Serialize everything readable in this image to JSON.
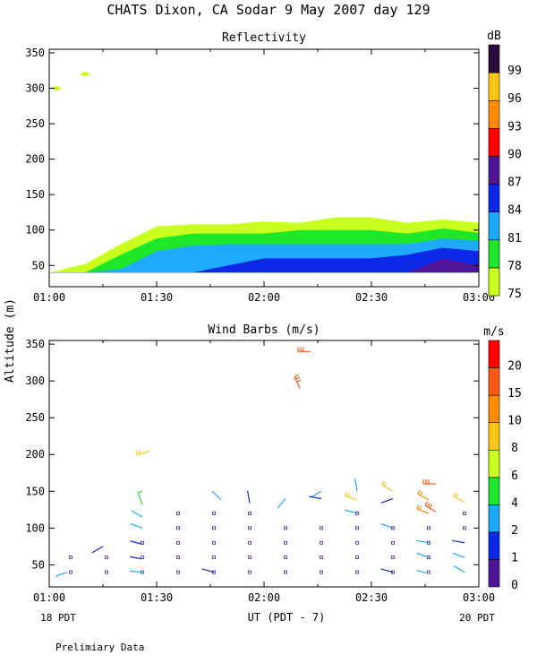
{
  "title": "CHATS Dixon, CA  Sodar   9 May 2007  day 129",
  "y_axis_label": "Altitude (m)",
  "x_axis_label": "UT  (PDT - 7)",
  "start_label": "18 PDT",
  "end_label": "20 PDT",
  "footer": "Prelimiary Data",
  "chart_data": [
    {
      "type": "area",
      "title": "Reflectivity",
      "xlabel": "UT  (PDT - 7)",
      "ylabel": "Altitude (m)",
      "x_ticks": [
        "01:00",
        "01:30",
        "02:00",
        "02:30",
        "03:00"
      ],
      "xlim_minutes_ut": [
        60,
        180
      ],
      "ylim": [
        20,
        355
      ],
      "y_ticks": [
        50,
        100,
        150,
        200,
        250,
        300,
        350
      ],
      "colorbar": {
        "unit": "dB",
        "levels": [
          75,
          78,
          81,
          84,
          87,
          90,
          93,
          96,
          99
        ],
        "colors": [
          "#c8ff1e",
          "#1ee628",
          "#1eaaff",
          "#0a28e6",
          "#50149a",
          "#ff0000",
          "#ff8c00",
          "#ffc814",
          "#2a0a3c"
        ]
      },
      "contour_x_minutes": [
        60,
        70,
        80,
        90,
        100,
        110,
        120,
        130,
        140,
        150,
        160,
        170,
        180
      ],
      "contours": [
        {
          "level": 75,
          "top_altitude_m": [
            40,
            52,
            80,
            105,
            108,
            108,
            112,
            110,
            118,
            118,
            110,
            115,
            110
          ]
        },
        {
          "level": 78,
          "top_altitude_m": [
            40,
            40,
            65,
            88,
            95,
            95,
            95,
            100,
            100,
            100,
            95,
            102,
            96
          ]
        },
        {
          "level": 81,
          "top_altitude_m": [
            40,
            40,
            45,
            70,
            78,
            80,
            80,
            80,
            80,
            80,
            80,
            88,
            85
          ]
        },
        {
          "level": 84,
          "top_altitude_m": [
            40,
            40,
            40,
            40,
            40,
            50,
            60,
            60,
            60,
            60,
            65,
            75,
            70
          ]
        },
        {
          "level": 87,
          "top_altitude_m": [
            40,
            40,
            40,
            40,
            40,
            40,
            40,
            40,
            40,
            40,
            40,
            60,
            50
          ]
        }
      ],
      "isolated_echoes": [
        {
          "x_minutes": 62,
          "y": 300,
          "level": 75
        },
        {
          "x_minutes": 70,
          "y": 320,
          "level": 75
        }
      ]
    },
    {
      "type": "scatter",
      "title": "Wind Barbs (m/s)",
      "xlabel": "UT  (PDT - 7)",
      "ylabel": "Altitude (m)",
      "x_ticks": [
        "01:00",
        "01:30",
        "02:00",
        "02:30",
        "03:00"
      ],
      "xlim_minutes_ut": [
        60,
        180
      ],
      "ylim": [
        20,
        355
      ],
      "y_ticks": [
        50,
        100,
        150,
        200,
        250,
        300,
        350
      ],
      "colorbar": {
        "unit": "m/s",
        "levels": [
          0,
          1,
          2,
          4,
          6,
          8,
          10,
          15,
          20
        ],
        "colors": [
          "#50149a",
          "#0a28e6",
          "#1eaaff",
          "#1ee628",
          "#c8ff1e",
          "#ffc814",
          "#ff8c00",
          "#ff5a14",
          "#ff0000"
        ]
      },
      "calm_points": [
        [
          66,
          40
        ],
        [
          66,
          60
        ],
        [
          76,
          40
        ],
        [
          76,
          60
        ],
        [
          86,
          40
        ],
        [
          86,
          60
        ],
        [
          86,
          80
        ],
        [
          96,
          40
        ],
        [
          96,
          60
        ],
        [
          96,
          80
        ],
        [
          96,
          100
        ],
        [
          96,
          120
        ],
        [
          106,
          40
        ],
        [
          106,
          60
        ],
        [
          106,
          80
        ],
        [
          106,
          100
        ],
        [
          106,
          120
        ],
        [
          116,
          40
        ],
        [
          116,
          60
        ],
        [
          116,
          80
        ],
        [
          116,
          100
        ],
        [
          116,
          120
        ],
        [
          126,
          40
        ],
        [
          126,
          60
        ],
        [
          126,
          80
        ],
        [
          126,
          100
        ],
        [
          136,
          40
        ],
        [
          136,
          60
        ],
        [
          136,
          80
        ],
        [
          136,
          100
        ],
        [
          146,
          40
        ],
        [
          146,
          60
        ],
        [
          146,
          80
        ],
        [
          146,
          100
        ],
        [
          146,
          120
        ],
        [
          156,
          40
        ],
        [
          156,
          60
        ],
        [
          156,
          80
        ],
        [
          156,
          100
        ],
        [
          166,
          40
        ],
        [
          166,
          60
        ],
        [
          166,
          80
        ],
        [
          166,
          100
        ],
        [
          176,
          100
        ],
        [
          176,
          120
        ]
      ],
      "wind_barbs": [
        {
          "x": 65,
          "y": 40,
          "dir": 250,
          "speed": 2
        },
        {
          "x": 75,
          "y": 75,
          "dir": 240,
          "speed": 1
        },
        {
          "x": 86,
          "y": 40,
          "dir": 275,
          "speed": 2
        },
        {
          "x": 86,
          "y": 58,
          "dir": 280,
          "speed": 1
        },
        {
          "x": 86,
          "y": 78,
          "dir": 285,
          "speed": 1
        },
        {
          "x": 86,
          "y": 100,
          "dir": 290,
          "speed": 2
        },
        {
          "x": 86,
          "y": 115,
          "dir": 300,
          "speed": 3
        },
        {
          "x": 86,
          "y": 132,
          "dir": 340,
          "speed": 4
        },
        {
          "x": 88,
          "y": 205,
          "dir": 250,
          "speed": 9
        },
        {
          "x": 106,
          "y": 40,
          "dir": 285,
          "speed": 1
        },
        {
          "x": 108,
          "y": 138,
          "dir": 315,
          "speed": 2
        },
        {
          "x": 116,
          "y": 134,
          "dir": 350,
          "speed": 1
        },
        {
          "x": 126,
          "y": 140,
          "dir": 220,
          "speed": 2
        },
        {
          "x": 130,
          "y": 290,
          "dir": 335,
          "speed": 18
        },
        {
          "x": 133,
          "y": 340,
          "dir": 270,
          "speed": 19
        },
        {
          "x": 136,
          "y": 150,
          "dir": 240,
          "speed": 3
        },
        {
          "x": 136,
          "y": 140,
          "dir": 280,
          "speed": 1
        },
        {
          "x": 146,
          "y": 150,
          "dir": 350,
          "speed": 3
        },
        {
          "x": 146,
          "y": 138,
          "dir": 290,
          "speed": 9
        },
        {
          "x": 146,
          "y": 120,
          "dir": 285,
          "speed": 3
        },
        {
          "x": 156,
          "y": 140,
          "dir": 250,
          "speed": 1
        },
        {
          "x": 156,
          "y": 150,
          "dir": 300,
          "speed": 8
        },
        {
          "x": 156,
          "y": 40,
          "dir": 285,
          "speed": 1
        },
        {
          "x": 156,
          "y": 100,
          "dir": 290,
          "speed": 2
        },
        {
          "x": 166,
          "y": 120,
          "dir": 290,
          "speed": 10
        },
        {
          "x": 166,
          "y": 138,
          "dir": 300,
          "speed": 10
        },
        {
          "x": 168,
          "y": 160,
          "dir": 270,
          "speed": 19
        },
        {
          "x": 168,
          "y": 122,
          "dir": 300,
          "speed": 18
        },
        {
          "x": 166,
          "y": 80,
          "dir": 280,
          "speed": 2
        },
        {
          "x": 166,
          "y": 60,
          "dir": 290,
          "speed": 2
        },
        {
          "x": 166,
          "y": 38,
          "dir": 285,
          "speed": 2
        },
        {
          "x": 176,
          "y": 135,
          "dir": 300,
          "speed": 9
        },
        {
          "x": 176,
          "y": 80,
          "dir": 280,
          "speed": 1
        },
        {
          "x": 176,
          "y": 60,
          "dir": 290,
          "speed": 2
        },
        {
          "x": 176,
          "y": 40,
          "dir": 300,
          "speed": 2
        }
      ]
    }
  ]
}
